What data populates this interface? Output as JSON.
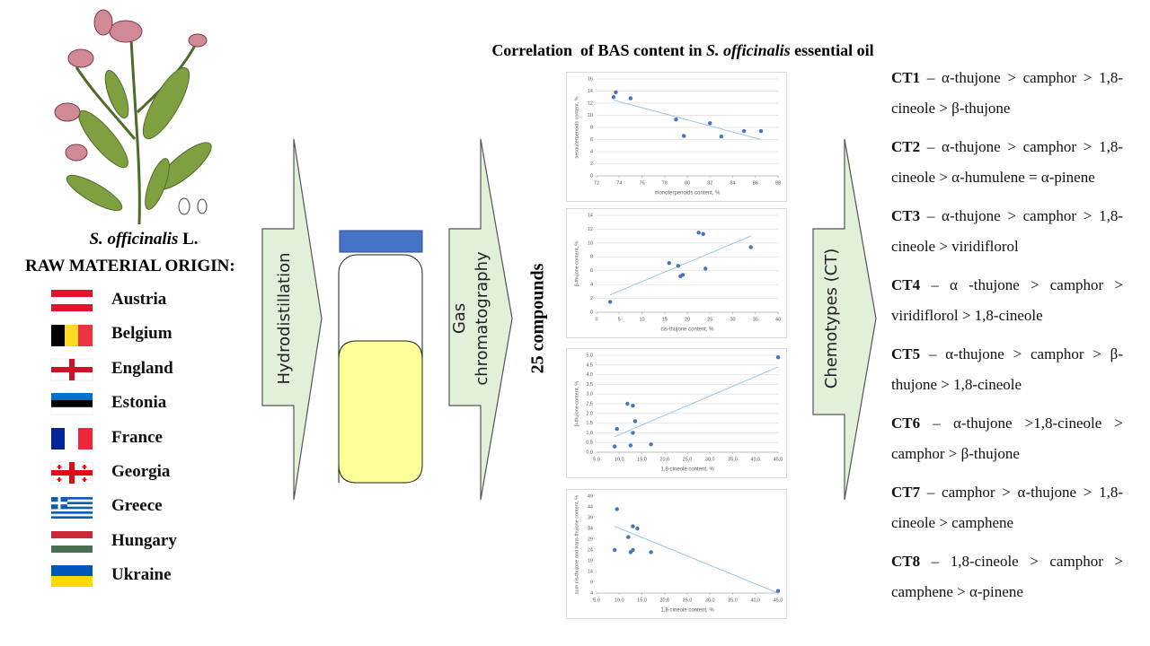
{
  "plant": {
    "species": "S. officinalis",
    "suffix": "L."
  },
  "origin": {
    "heading": "RAW MATERIAL ORIGIN:",
    "countries": [
      "Austria",
      "Belgium",
      "England",
      "Estonia",
      "France",
      "Georgia",
      "Greece",
      "Hungary",
      "Ukraine"
    ]
  },
  "steps": {
    "hydrodistillation": "Hydrodistillation",
    "chromatography": [
      "Gas",
      "chromatography"
    ],
    "compounds": "25 compounds",
    "chemotypes": "Chemotypes (CT)"
  },
  "title": {
    "parts": [
      "Correlation  of BAS content in ",
      "S. officinalis",
      " essential oil"
    ]
  },
  "chemotypes": [
    {
      "label": "CT1",
      "text": "– α-thujone > camphor > 1,8-cineole > β-thujone"
    },
    {
      "label": "CT2",
      "text": "– α-thujone > camphor > 1,8-cineole > α-humulene = α-pinene"
    },
    {
      "label": "CT3",
      "text": "– α-thujone > camphor > 1,8-cineole > viridiflorol"
    },
    {
      "label": "CT4",
      "text": "– α -thujone > camphor > viridiflorol > 1,8-cineole"
    },
    {
      "label": "CT5",
      "text": "– α-thujone > camphor > β-thujone > 1,8-cineole"
    },
    {
      "label": "CT6",
      "text": "– α-thujone >1,8-cineole > camphor > β-thujone"
    },
    {
      "label": "CT7",
      "text": "– camphor > α-thujone > 1,8-cineole > camphene"
    },
    {
      "label": "CT8",
      "text": "– 1,8-cineole > camphor > camphene > α-pinene"
    }
  ],
  "chart_data": [
    {
      "type": "scatter",
      "x_label": "monoterpenoids content, %",
      "y_label": "sesquiterpenoids content, %",
      "color": "#4472c4",
      "grid": true,
      "x": [
        73.5,
        73.7,
        75,
        79,
        79.7,
        82,
        83,
        85,
        86.5
      ],
      "y": [
        13,
        13.8,
        12.8,
        9.3,
        6.6,
        8.7,
        6.5,
        7.4,
        7.4
      ],
      "trend": {
        "x": [
          73.5,
          86.5
        ],
        "y": [
          12.5,
          6
        ]
      },
      "xlim": [
        72,
        88
      ],
      "xticks": [
        72,
        74,
        76,
        78,
        80,
        82,
        84,
        86,
        88
      ],
      "ylim": [
        0,
        16
      ],
      "yticks": [
        0,
        2,
        4,
        6,
        8,
        10,
        12,
        14,
        16
      ]
    },
    {
      "type": "scatter",
      "x_label": "cis-thujone content, %",
      "y_label": "β-thujone  content, %",
      "color": "#4472c4",
      "grid": true,
      "x": [
        3,
        16,
        18,
        18.5,
        19,
        22.5,
        23.5,
        24,
        34
      ],
      "y": [
        1.5,
        7.1,
        6.7,
        5.2,
        5.4,
        11.5,
        11.3,
        6.3,
        9.4
      ],
      "trend": {
        "x": [
          3,
          34
        ],
        "y": [
          2.5,
          11
        ]
      },
      "xlim": [
        0,
        40
      ],
      "xticks": [
        0,
        5,
        10,
        15,
        20,
        25,
        30,
        35,
        40
      ],
      "ylim": [
        0,
        14
      ],
      "yticks": [
        0,
        2,
        4,
        6,
        8,
        10,
        12,
        14
      ]
    },
    {
      "type": "scatter",
      "x_label": "1,8-cineole  content, %",
      "y_label": "β-thujone  content, %",
      "color": "#4472c4",
      "grid": true,
      "x": [
        9,
        9.5,
        11.8,
        12.5,
        13,
        13,
        13.5,
        17,
        45
      ],
      "y": [
        0.3,
        1.2,
        2.5,
        0.35,
        2.4,
        1.0,
        1.6,
        0.4,
        4.9
      ],
      "trend": {
        "x": [
          9,
          45
        ],
        "y": [
          0.8,
          4.4
        ]
      },
      "xlim": [
        5,
        45
      ],
      "xticks": [
        {
          "value": 5,
          "label": "5,0"
        },
        {
          "value": 10,
          "label": "10,0"
        },
        {
          "value": 15,
          "label": "15,0"
        },
        {
          "value": 20,
          "label": "20,0"
        },
        {
          "value": 25,
          "label": "25,0"
        },
        {
          "value": 30,
          "label": "30,0"
        },
        {
          "value": 35,
          "label": "35,0"
        },
        {
          "value": 40,
          "label": "40,0"
        },
        {
          "value": 45,
          "label": "45,0"
        }
      ],
      "ylim": [
        0,
        5
      ],
      "yticks": [
        {
          "value": 0,
          "label": "0,0"
        },
        {
          "value": 0.5,
          "label": "0,5"
        },
        {
          "value": 1,
          "label": "1,0"
        },
        {
          "value": 1.5,
          "label": "1,5"
        },
        {
          "value": 2,
          "label": "2,0"
        },
        {
          "value": 2.5,
          "label": "2,5"
        },
        {
          "value": 3,
          "label": "3,0"
        },
        {
          "value": 3.5,
          "label": "3,5"
        },
        {
          "value": 4,
          "label": "4,0"
        },
        {
          "value": 4.5,
          "label": "4,5"
        },
        {
          "value": 5,
          "label": "5,0"
        }
      ]
    },
    {
      "type": "scatter",
      "x_label": "1,8-cineole content, %",
      "y_label": "sum cis-thujone and trans-thujone content, %",
      "color": "#4472c4",
      "grid": false,
      "x": [
        9,
        9.5,
        12,
        12.5,
        13,
        13,
        14,
        17,
        45
      ],
      "y": [
        24,
        43,
        30,
        23,
        24,
        35,
        34,
        23,
        5
      ],
      "trend": {
        "x": [
          9,
          45
        ],
        "y": [
          35,
          4
        ]
      },
      "xlim": [
        5,
        45
      ],
      "xticks": [
        {
          "value": 5,
          "label": "5,0"
        },
        {
          "value": 10,
          "label": "10,0"
        },
        {
          "value": 15,
          "label": "15,0"
        },
        {
          "value": 20,
          "label": "20,0"
        },
        {
          "value": 25,
          "label": "25,0"
        },
        {
          "value": 30,
          "label": "30,0"
        },
        {
          "value": 35,
          "label": "35,0"
        },
        {
          "value": 40,
          "label": "40,0"
        },
        {
          "value": 45,
          "label": "45,0"
        }
      ],
      "ylim": [
        4,
        49
      ],
      "yticks": [
        4,
        9,
        14,
        19,
        24,
        29,
        34,
        39,
        44,
        49
      ]
    }
  ]
}
